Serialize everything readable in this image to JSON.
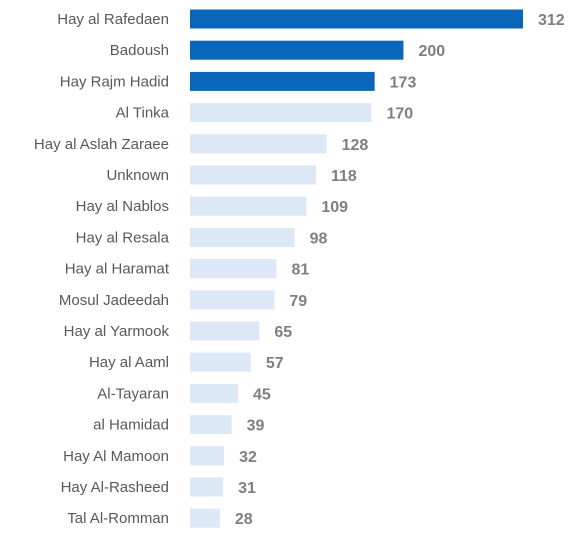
{
  "chart_data": {
    "type": "bar",
    "orientation": "horizontal",
    "title": "",
    "xlabel": "",
    "ylabel": "",
    "grid": false,
    "legend": "none",
    "categories": [
      "Hay al Rafedaen",
      "Badoush",
      "Hay Rajm Hadid",
      "Al Tinka",
      "Hay al Aslah Zaraee",
      "Unknown",
      "Hay al Nablos",
      "Hay al Resala",
      "Hay al Haramat",
      "Mosul Jadeedah",
      "Hay al Yarmook",
      "Hay al Aaml",
      "Al-Tayaran",
      "al Hamidad",
      "Hay Al Mamoon",
      "Hay Al-Rasheed",
      "Tal Al-Romman"
    ],
    "values": [
      312,
      200,
      173,
      170,
      128,
      118,
      109,
      98,
      81,
      79,
      65,
      57,
      45,
      39,
      32,
      31,
      28
    ],
    "highlighted": [
      true,
      true,
      true,
      false,
      false,
      false,
      false,
      false,
      false,
      false,
      false,
      false,
      false,
      false,
      false,
      false,
      false
    ],
    "colors": {
      "highlight": "#0a66b8",
      "normal": "#dde8f6",
      "label": "#595959",
      "value": "#7f7f7f"
    }
  }
}
